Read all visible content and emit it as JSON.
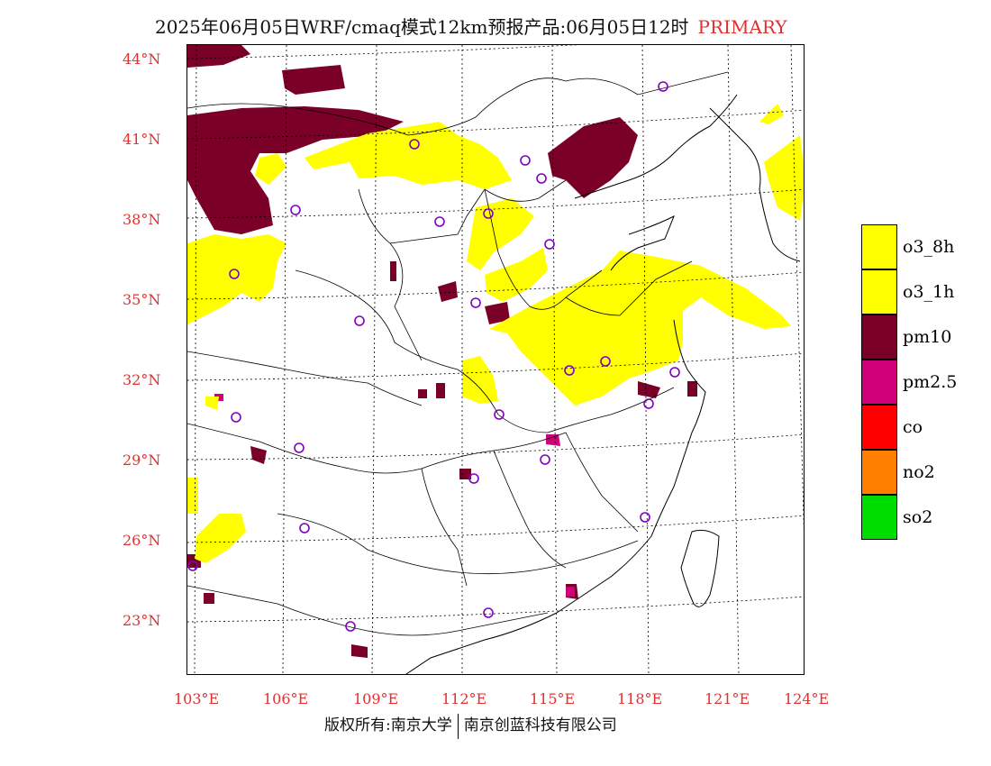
{
  "title": {
    "text": "2025年06月05日WRF/cmaq模式12km预报产品:06月05日12时",
    "tag": "PRIMARY"
  },
  "axes": {
    "lat_labels": [
      "44°N",
      "41°N",
      "38°N",
      "35°N",
      "32°N",
      "29°N",
      "26°N",
      "23°N"
    ],
    "lon_labels": [
      "103°E",
      "106°E",
      "109°E",
      "112°E",
      "115°E",
      "118°E",
      "121°E",
      "124°E"
    ]
  },
  "legend": [
    {
      "label": "o3_8h",
      "color": "#ffff00"
    },
    {
      "label": "o3_1h",
      "color": "#ffff00"
    },
    {
      "label": "pm10",
      "color": "#7a0027"
    },
    {
      "label": "pm2.5",
      "color": "#d0007a"
    },
    {
      "label": "co",
      "color": "#ff0000"
    },
    {
      "label": "no2",
      "color": "#ff8000"
    },
    {
      "label": "so2",
      "color": "#00dd00"
    }
  ],
  "colors": {
    "axis_label": "#e03030",
    "station_marker": "#8000c0"
  },
  "footer": {
    "left": "版权所有:南京大学",
    "right": "南京创蓝科技有限公司"
  }
}
